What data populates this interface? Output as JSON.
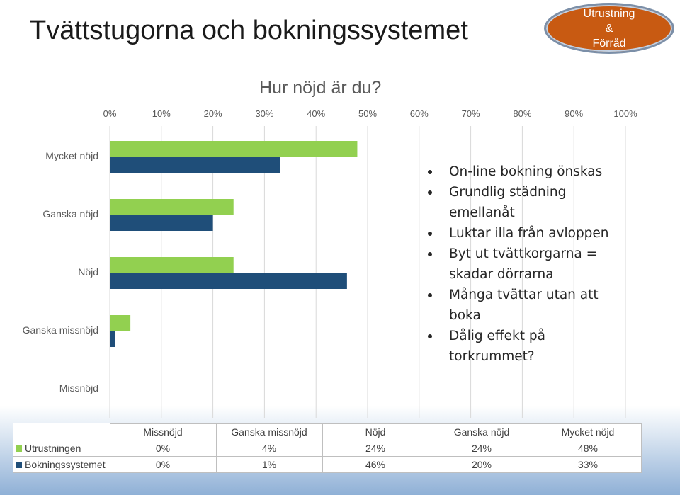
{
  "slide": {
    "title": "Tvättstugorna och bokningssystemet",
    "badge": [
      "Utrustning",
      "&",
      "Förråd"
    ]
  },
  "chart_data": {
    "type": "bar",
    "orientation": "horizontal",
    "title": "Hur nöjd är du?",
    "categories": [
      "Missnöjd",
      "Ganska missnöjd",
      "Nöjd",
      "Ganska nöjd",
      "Mycket nöjd"
    ],
    "series": [
      {
        "name": "Utrustningen",
        "values": [
          0,
          4,
          24,
          24,
          48
        ],
        "color": "#92d050"
      },
      {
        "name": "Bokningssystemet",
        "values": [
          0,
          1,
          46,
          20,
          33
        ],
        "color": "#1f4e79"
      }
    ],
    "xlim": [
      0,
      100
    ],
    "x_ticks": [
      "0%",
      "10%",
      "20%",
      "30%",
      "40%",
      "50%",
      "60%",
      "70%",
      "80%",
      "90%",
      "100%"
    ],
    "x_axis_position": "top",
    "grid": true,
    "legend": "data-table-bottom",
    "data_table": {
      "headers": [
        "Missnöjd",
        "Ganska missnöjd",
        "Nöjd",
        "Ganska nöjd",
        "Mycket nöjd"
      ],
      "rows": [
        {
          "name": "Utrustningen",
          "cells": [
            "0%",
            "4%",
            "24%",
            "24%",
            "48%"
          ]
        },
        {
          "name": "Bokningssystemet",
          "cells": [
            "0%",
            "1%",
            "46%",
            "20%",
            "33%"
          ]
        }
      ]
    }
  },
  "comments": [
    "On-line bokning önskas",
    "Grundlig städning emellanåt",
    "Luktar illa från avloppen",
    "Byt ut tvättkorgarna = skadar dörrarna",
    "Många tvättar utan att boka",
    "Dålig effekt på torkrummet?"
  ]
}
